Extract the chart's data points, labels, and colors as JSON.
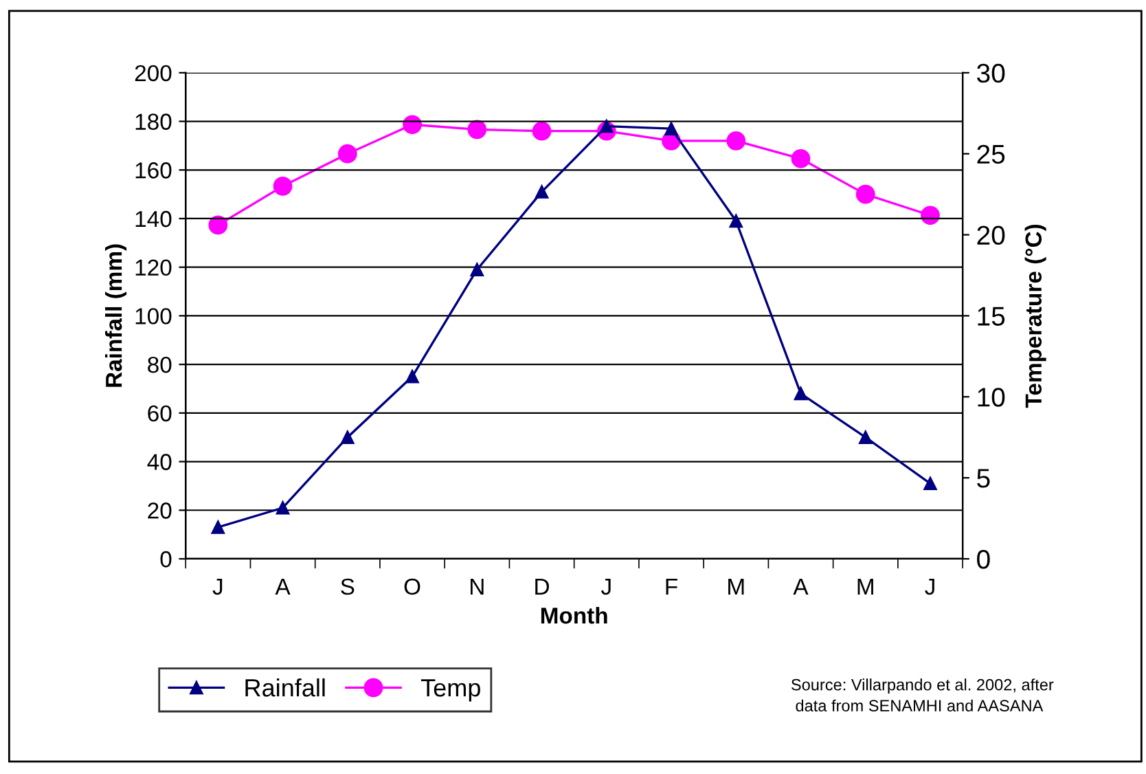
{
  "chart_data": {
    "type": "line",
    "xlabel": "Month",
    "ylabel": "Rainfall (mm)",
    "y2label": "Temperature (°C)",
    "categories": [
      "J",
      "A",
      "S",
      "O",
      "N",
      "D",
      "J",
      "F",
      "M",
      "A",
      "M",
      "J"
    ],
    "series": [
      {
        "name": "Rainfall",
        "color": "#000080",
        "marker": "triangle",
        "values": [
          13,
          21,
          50,
          75,
          119,
          151,
          178,
          177,
          139,
          68,
          50,
          31
        ]
      },
      {
        "name": "Temp",
        "color": "#ff00ff",
        "marker": "circle",
        "axis": "y2",
        "values": [
          20.6,
          23,
          25,
          26.8,
          26.5,
          26.4,
          26.4,
          25.8,
          25.8,
          24.7,
          22.5,
          21.2
        ]
      }
    ],
    "ylim": [
      0,
      200
    ],
    "yticks": [
      0,
      20,
      40,
      60,
      80,
      100,
      120,
      140,
      160,
      180,
      200
    ],
    "y2lim": [
      0,
      30
    ],
    "y2ticks": [
      0,
      5,
      10,
      15,
      20,
      25,
      30
    ],
    "grid": "y",
    "legend": "bottom left",
    "annotations": [
      "Source: Villarpando et al. 2002, after\n data from SENAMHI and AASANA"
    ]
  }
}
